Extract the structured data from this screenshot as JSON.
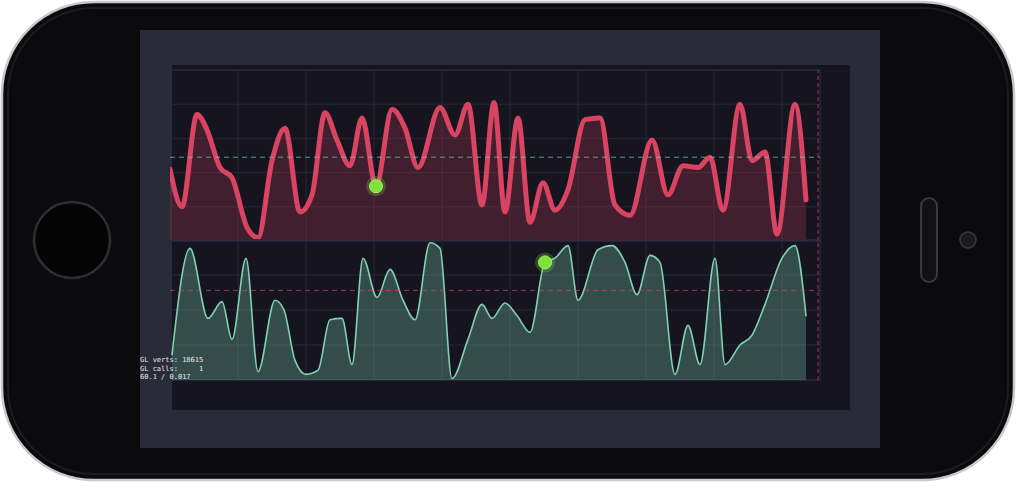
{
  "chart_data": [
    {
      "type": "area",
      "color": "#d94462",
      "x": [
        0,
        12,
        27,
        37,
        50,
        62,
        77,
        88,
        102,
        115,
        130,
        142,
        155,
        167,
        180,
        192,
        206,
        222,
        235,
        248,
        270,
        285,
        298,
        312,
        324,
        335,
        348,
        360,
        373,
        385,
        398,
        415,
        430,
        445,
        460,
        482,
        498,
        513,
        528,
        540,
        553,
        570,
        582,
        595,
        607,
        625,
        636
      ],
      "values": [
        42,
        20,
        74,
        65,
        43,
        37,
        8,
        2,
        47,
        66,
        17,
        27,
        75,
        59,
        44,
        72,
        32,
        77,
        66,
        43,
        78,
        62,
        80,
        21,
        81,
        17,
        72,
        11,
        34,
        18,
        30,
        71,
        72,
        21,
        15,
        59,
        27,
        44,
        43,
        49,
        18,
        80,
        47,
        52,
        4,
        80,
        24
      ],
      "xlim": [
        0,
        650
      ],
      "ylim": [
        0,
        100
      ],
      "xticks": [
        0,
        68,
        136,
        204,
        272,
        340,
        408,
        476,
        544,
        612
      ],
      "yticks": [
        0,
        20,
        40,
        60,
        80,
        100
      ],
      "grid": true,
      "tick_labels": false,
      "threshold": 49,
      "highlight": 206,
      "cursor_x": 648
    },
    {
      "type": "area",
      "color": "#7fd1b0",
      "x": [
        2,
        20,
        38,
        52,
        62,
        76,
        88,
        105,
        114,
        125,
        136,
        148,
        160,
        172,
        182,
        193,
        207,
        220,
        233,
        245,
        260,
        270,
        282,
        298,
        312,
        322,
        335,
        347,
        360,
        375,
        385,
        398,
        408,
        428,
        442,
        455,
        467,
        480,
        490,
        505,
        518,
        530,
        545,
        555,
        570,
        582,
        595,
        612,
        625,
        636
      ],
      "values": [
        18,
        94,
        44,
        56,
        29,
        87,
        6,
        57,
        50,
        14,
        4,
        7,
        43,
        44,
        11,
        87,
        59,
        79,
        57,
        43,
        98,
        94,
        1,
        29,
        54,
        44,
        55,
        46,
        34,
        84,
        87,
        96,
        57,
        93,
        96,
        84,
        61,
        89,
        84,
        4,
        39,
        11,
        87,
        11,
        25,
        32,
        54,
        87,
        96,
        46
      ],
      "xlim": [
        0,
        650
      ],
      "ylim": [
        0,
        100
      ],
      "xticks": [
        0,
        68,
        136,
        204,
        272,
        340,
        408,
        476,
        544,
        612
      ],
      "yticks": [
        0,
        25,
        50,
        75,
        100
      ],
      "grid": true,
      "tick_labels": false,
      "threshold": 64,
      "highlight": 375,
      "cursor_x": 648
    }
  ],
  "annotations": [
    "GL verts: 18615",
    "GL calls:     1",
    "60.1 / 0.017"
  ]
}
